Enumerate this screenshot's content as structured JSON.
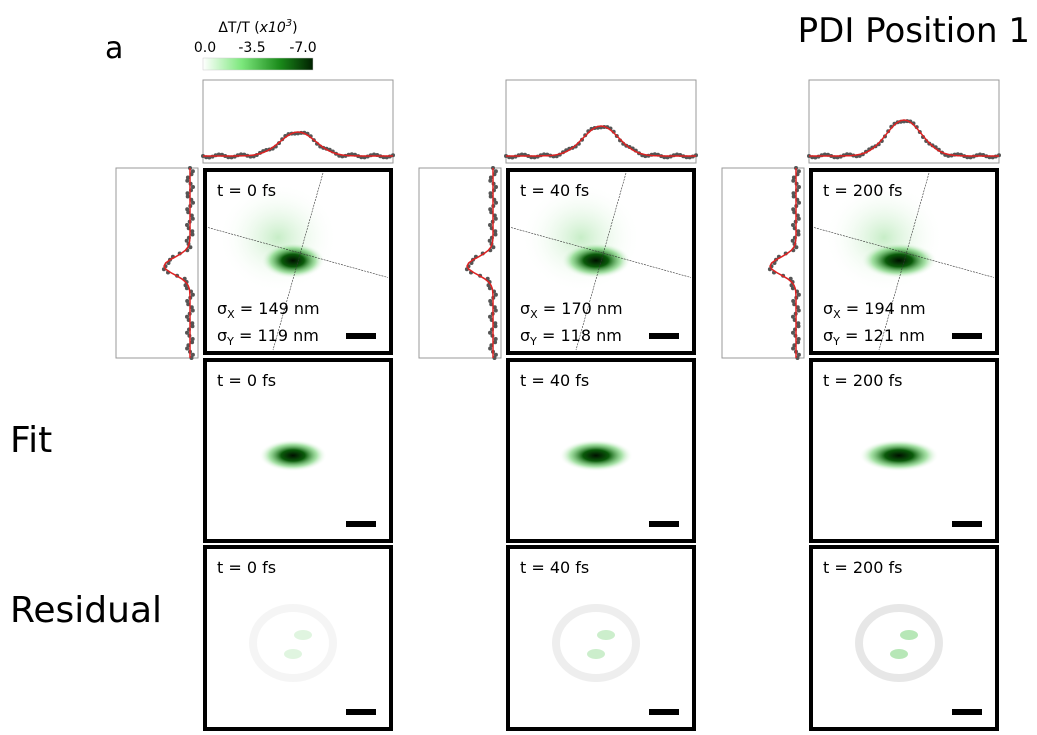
{
  "figure": {
    "panel_letter": "a",
    "title": "PDI Position 1",
    "colorbar": {
      "label": "ΔT/T (",
      "label_italic": "x10",
      "label_sup": "3",
      "label_end": ")",
      "ticks": [
        "0.0",
        "-3.5",
        "-7.0"
      ]
    },
    "row_labels": [
      "Fit",
      "Residual"
    ],
    "columns": [
      {
        "time": "t = 0 fs",
        "sigma_x": {
          "symbol": "σ",
          "sub": "X",
          "text": " = 149 nm"
        },
        "sigma_y": {
          "symbol": "σ",
          "sub": "Y",
          "text": " = 119 nm"
        }
      },
      {
        "time": "t = 40 fs",
        "sigma_x": {
          "symbol": "σ",
          "sub": "X",
          "text": " = 170 nm"
        },
        "sigma_y": {
          "symbol": "σ",
          "sub": "Y",
          "text": " = 118 nm"
        }
      },
      {
        "time": "t = 200 fs",
        "sigma_x": {
          "symbol": "σ",
          "sub": "X",
          "text": " = 194 nm"
        },
        "sigma_y": {
          "symbol": "σ",
          "sub": "Y",
          "text": " = 121 nm"
        }
      }
    ]
  }
}
